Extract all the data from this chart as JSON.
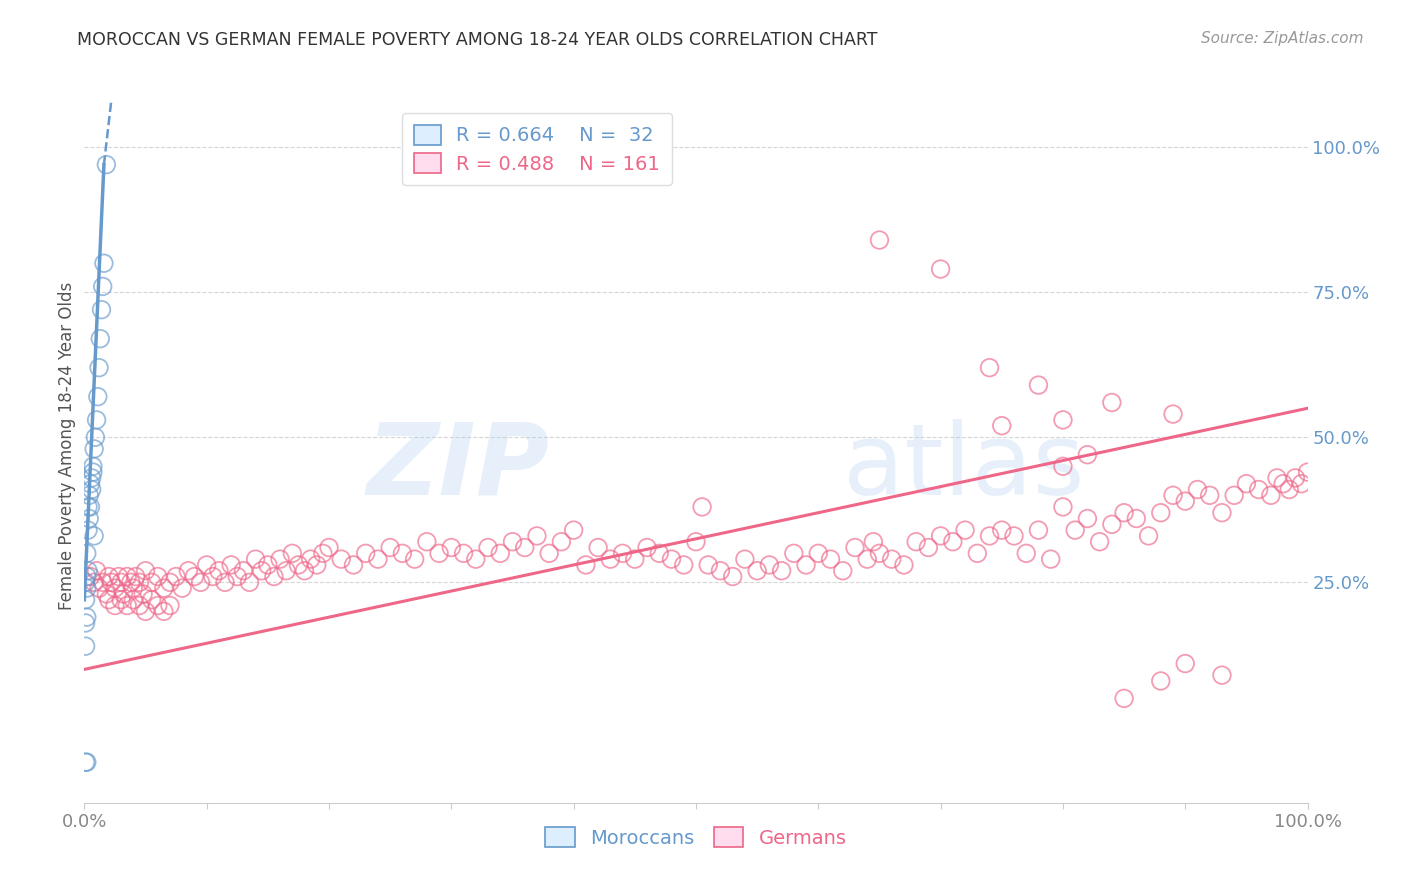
{
  "title": "MOROCCAN VS GERMAN FEMALE POVERTY AMONG 18-24 YEAR OLDS CORRELATION CHART",
  "source": "Source: ZipAtlas.com",
  "ylabel": "Female Poverty Among 18-24 Year Olds",
  "xlim": [
    0.0,
    1.0
  ],
  "ylim": [
    -0.13,
    1.1
  ],
  "blue_color": "#6699CC",
  "pink_color": "#EE6688",
  "blue_R": 0.664,
  "blue_N": 32,
  "pink_R": 0.488,
  "pink_N": 161,
  "blue_scatter": [
    [
      0.001,
      0.25
    ],
    [
      0.002,
      0.24
    ],
    [
      0.002,
      0.3
    ],
    [
      0.003,
      0.34
    ],
    [
      0.003,
      0.38
    ],
    [
      0.004,
      0.36
    ],
    [
      0.004,
      0.4
    ],
    [
      0.005,
      0.42
    ],
    [
      0.005,
      0.38
    ],
    [
      0.006,
      0.43
    ],
    [
      0.006,
      0.41
    ],
    [
      0.007,
      0.45
    ],
    [
      0.007,
      0.44
    ],
    [
      0.008,
      0.48
    ],
    [
      0.009,
      0.5
    ],
    [
      0.01,
      0.53
    ],
    [
      0.011,
      0.57
    ],
    [
      0.012,
      0.62
    ],
    [
      0.013,
      0.67
    ],
    [
      0.014,
      0.72
    ],
    [
      0.015,
      0.76
    ],
    [
      0.016,
      0.8
    ],
    [
      0.001,
      0.22
    ],
    [
      0.002,
      0.26
    ],
    [
      0.001,
      0.18
    ],
    [
      0.001,
      0.14
    ],
    [
      0.002,
      0.19
    ],
    [
      0.003,
      0.27
    ],
    [
      0.001,
      -0.06
    ],
    [
      0.002,
      -0.06
    ],
    [
      0.018,
      0.97
    ],
    [
      0.008,
      0.33
    ]
  ],
  "pink_scatter": [
    [
      0.005,
      0.26
    ],
    [
      0.008,
      0.25
    ],
    [
      0.01,
      0.27
    ],
    [
      0.012,
      0.24
    ],
    [
      0.015,
      0.25
    ],
    [
      0.018,
      0.23
    ],
    [
      0.02,
      0.26
    ],
    [
      0.022,
      0.25
    ],
    [
      0.025,
      0.24
    ],
    [
      0.028,
      0.26
    ],
    [
      0.03,
      0.25
    ],
    [
      0.032,
      0.23
    ],
    [
      0.035,
      0.26
    ],
    [
      0.038,
      0.25
    ],
    [
      0.04,
      0.24
    ],
    [
      0.042,
      0.26
    ],
    [
      0.045,
      0.25
    ],
    [
      0.048,
      0.23
    ],
    [
      0.05,
      0.27
    ],
    [
      0.055,
      0.25
    ],
    [
      0.06,
      0.26
    ],
    [
      0.065,
      0.24
    ],
    [
      0.07,
      0.25
    ],
    [
      0.075,
      0.26
    ],
    [
      0.08,
      0.24
    ],
    [
      0.085,
      0.27
    ],
    [
      0.09,
      0.26
    ],
    [
      0.095,
      0.25
    ],
    [
      0.1,
      0.28
    ],
    [
      0.105,
      0.26
    ],
    [
      0.11,
      0.27
    ],
    [
      0.115,
      0.25
    ],
    [
      0.12,
      0.28
    ],
    [
      0.125,
      0.26
    ],
    [
      0.13,
      0.27
    ],
    [
      0.135,
      0.25
    ],
    [
      0.14,
      0.29
    ],
    [
      0.145,
      0.27
    ],
    [
      0.15,
      0.28
    ],
    [
      0.155,
      0.26
    ],
    [
      0.16,
      0.29
    ],
    [
      0.165,
      0.27
    ],
    [
      0.17,
      0.3
    ],
    [
      0.175,
      0.28
    ],
    [
      0.18,
      0.27
    ],
    [
      0.185,
      0.29
    ],
    [
      0.19,
      0.28
    ],
    [
      0.195,
      0.3
    ],
    [
      0.2,
      0.31
    ],
    [
      0.21,
      0.29
    ],
    [
      0.22,
      0.28
    ],
    [
      0.23,
      0.3
    ],
    [
      0.24,
      0.29
    ],
    [
      0.25,
      0.31
    ],
    [
      0.26,
      0.3
    ],
    [
      0.27,
      0.29
    ],
    [
      0.28,
      0.32
    ],
    [
      0.29,
      0.3
    ],
    [
      0.3,
      0.31
    ],
    [
      0.31,
      0.3
    ],
    [
      0.32,
      0.29
    ],
    [
      0.33,
      0.31
    ],
    [
      0.34,
      0.3
    ],
    [
      0.35,
      0.32
    ],
    [
      0.36,
      0.31
    ],
    [
      0.37,
      0.33
    ],
    [
      0.38,
      0.3
    ],
    [
      0.39,
      0.32
    ],
    [
      0.4,
      0.34
    ],
    [
      0.41,
      0.28
    ],
    [
      0.42,
      0.31
    ],
    [
      0.43,
      0.29
    ],
    [
      0.44,
      0.3
    ],
    [
      0.45,
      0.29
    ],
    [
      0.46,
      0.31
    ],
    [
      0.47,
      0.3
    ],
    [
      0.48,
      0.29
    ],
    [
      0.49,
      0.28
    ],
    [
      0.5,
      0.32
    ],
    [
      0.505,
      0.38
    ],
    [
      0.51,
      0.28
    ],
    [
      0.52,
      0.27
    ],
    [
      0.53,
      0.26
    ],
    [
      0.54,
      0.29
    ],
    [
      0.55,
      0.27
    ],
    [
      0.56,
      0.28
    ],
    [
      0.57,
      0.27
    ],
    [
      0.58,
      0.3
    ],
    [
      0.59,
      0.28
    ],
    [
      0.6,
      0.3
    ],
    [
      0.61,
      0.29
    ],
    [
      0.62,
      0.27
    ],
    [
      0.63,
      0.31
    ],
    [
      0.64,
      0.29
    ],
    [
      0.645,
      0.32
    ],
    [
      0.65,
      0.3
    ],
    [
      0.66,
      0.29
    ],
    [
      0.67,
      0.28
    ],
    [
      0.68,
      0.32
    ],
    [
      0.69,
      0.31
    ],
    [
      0.7,
      0.33
    ],
    [
      0.71,
      0.32
    ],
    [
      0.72,
      0.34
    ],
    [
      0.73,
      0.3
    ],
    [
      0.74,
      0.33
    ],
    [
      0.75,
      0.34
    ],
    [
      0.76,
      0.33
    ],
    [
      0.77,
      0.3
    ],
    [
      0.78,
      0.34
    ],
    [
      0.79,
      0.29
    ],
    [
      0.8,
      0.38
    ],
    [
      0.81,
      0.34
    ],
    [
      0.82,
      0.36
    ],
    [
      0.83,
      0.32
    ],
    [
      0.84,
      0.35
    ],
    [
      0.85,
      0.37
    ],
    [
      0.86,
      0.36
    ],
    [
      0.87,
      0.33
    ],
    [
      0.88,
      0.37
    ],
    [
      0.89,
      0.4
    ],
    [
      0.9,
      0.39
    ],
    [
      0.91,
      0.41
    ],
    [
      0.92,
      0.4
    ],
    [
      0.93,
      0.37
    ],
    [
      0.94,
      0.4
    ],
    [
      0.95,
      0.42
    ],
    [
      0.96,
      0.41
    ],
    [
      0.97,
      0.4
    ],
    [
      0.975,
      0.43
    ],
    [
      0.98,
      0.42
    ],
    [
      0.985,
      0.41
    ],
    [
      0.99,
      0.43
    ],
    [
      0.995,
      0.42
    ],
    [
      1.0,
      0.44
    ],
    [
      0.65,
      0.84
    ],
    [
      0.7,
      0.79
    ],
    [
      0.74,
      0.62
    ],
    [
      0.78,
      0.59
    ],
    [
      0.75,
      0.52
    ],
    [
      0.8,
      0.53
    ],
    [
      0.84,
      0.56
    ],
    [
      0.89,
      0.54
    ],
    [
      0.8,
      0.45
    ],
    [
      0.82,
      0.47
    ],
    [
      0.85,
      0.05
    ],
    [
      0.88,
      0.08
    ],
    [
      0.9,
      0.11
    ],
    [
      0.93,
      0.09
    ],
    [
      0.02,
      0.22
    ],
    [
      0.025,
      0.21
    ],
    [
      0.03,
      0.22
    ],
    [
      0.035,
      0.21
    ],
    [
      0.04,
      0.22
    ],
    [
      0.045,
      0.21
    ],
    [
      0.05,
      0.2
    ],
    [
      0.055,
      0.22
    ],
    [
      0.06,
      0.21
    ],
    [
      0.065,
      0.2
    ],
    [
      0.07,
      0.21
    ]
  ],
  "blue_line_solid": {
    "x0": 0.0,
    "y0": 0.22,
    "x1": 0.016,
    "y1": 0.97
  },
  "blue_line_dash": {
    "x0": 0.016,
    "y0": 0.97,
    "x1": 0.022,
    "y1": 1.08
  },
  "pink_line": {
    "x0": 0.0,
    "y0": 0.1,
    "x1": 1.0,
    "y1": 0.55
  },
  "watermark_zip": "ZIP",
  "watermark_atlas": "atlas",
  "background_color": "#FFFFFF",
  "grid_color": "#CCCCCC",
  "right_ytick_color": "#6699CC",
  "xtick_color": "#888888",
  "title_color": "#333333",
  "source_color": "#999999"
}
